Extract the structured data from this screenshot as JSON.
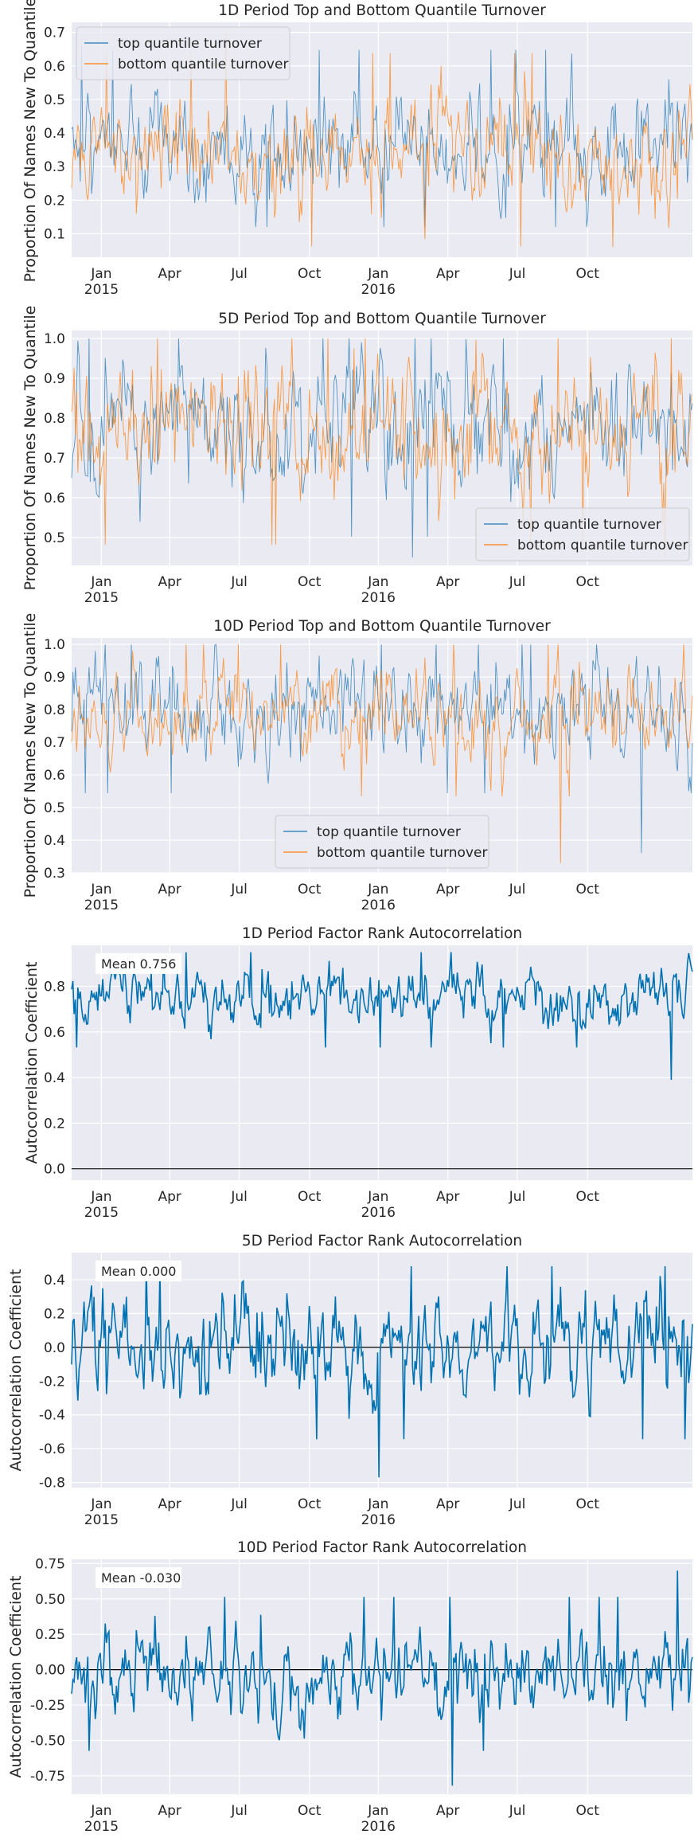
{
  "colors": {
    "background": "#ffffff",
    "plot_face": "#eaeaf2",
    "grid": "#ffffff",
    "text": "#262626",
    "top": "#1f77b4",
    "bottom": "#ff7f0e",
    "autocorr": "#0072b2",
    "zero_line": "#000000"
  },
  "x_ticks": [
    {
      "label": "Jan",
      "year": "2015",
      "t": 0.048
    },
    {
      "label": "Apr",
      "year": "",
      "t": 0.158
    },
    {
      "label": "Jul",
      "year": "",
      "t": 0.27
    },
    {
      "label": "Oct",
      "year": "",
      "t": 0.383
    },
    {
      "label": "Jan",
      "year": "2016",
      "t": 0.494
    },
    {
      "label": "Apr",
      "year": "",
      "t": 0.606
    },
    {
      "label": "Jul",
      "year": "",
      "t": 0.718
    },
    {
      "label": "Oct",
      "year": "",
      "t": 0.831
    }
  ],
  "chart_data": [
    {
      "type": "line",
      "title": "1D Period Top and Bottom Quantile Turnover",
      "ylabel": "Proportion Of Names New To Quantile",
      "ylim": [
        0.03,
        0.73
      ],
      "yticks": [
        "0.1",
        "0.2",
        "0.3",
        "0.4",
        "0.5",
        "0.6",
        "0.7"
      ],
      "legend_position": "upper-left",
      "series": [
        {
          "name": "top quantile turnover",
          "color_key": "top",
          "mean": 0.36,
          "amp": 0.09,
          "min": 0.12,
          "max": 0.66,
          "seed": 11
        },
        {
          "name": "bottom quantile turnover",
          "color_key": "bottom",
          "mean": 0.35,
          "amp": 0.09,
          "min": 0.06,
          "max": 0.7,
          "seed": 23
        }
      ]
    },
    {
      "type": "line",
      "title": "5D Period Top and Bottom Quantile Turnover",
      "ylabel": "Proportion Of Names New To Quantile",
      "ylim": [
        0.43,
        1.02
      ],
      "yticks": [
        "0.5",
        "0.6",
        "0.7",
        "0.8",
        "0.9",
        "1.0"
      ],
      "legend_position": "lower-right",
      "series": [
        {
          "name": "top quantile turnover",
          "color_key": "top",
          "mean": 0.79,
          "amp": 0.09,
          "min": 0.45,
          "max": 1.0,
          "seed": 37
        },
        {
          "name": "bottom quantile turnover",
          "color_key": "bottom",
          "mean": 0.77,
          "amp": 0.09,
          "min": 0.45,
          "max": 1.0,
          "seed": 41
        }
      ]
    },
    {
      "type": "line",
      "title": "10D Period Top and Bottom Quantile Turnover",
      "ylabel": "Proportion Of Names New To Quantile",
      "ylim": [
        0.3,
        1.02
      ],
      "yticks": [
        "0.3",
        "0.4",
        "0.5",
        "0.6",
        "0.7",
        "0.8",
        "0.9",
        "1.0"
      ],
      "legend_position": "lower-center",
      "series": [
        {
          "name": "top quantile turnover",
          "color_key": "top",
          "mean": 0.8,
          "amp": 0.08,
          "min": 0.36,
          "max": 1.0,
          "seed": 53
        },
        {
          "name": "bottom quantile turnover",
          "color_key": "bottom",
          "mean": 0.79,
          "amp": 0.08,
          "min": 0.33,
          "max": 1.0,
          "seed": 67
        }
      ]
    },
    {
      "type": "line",
      "title": "1D Period Factor Rank Autocorrelation",
      "ylabel": "Autocorrelation Coefficient",
      "ylim": [
        -0.05,
        0.98
      ],
      "yticks": [
        "0.0",
        "0.2",
        "0.4",
        "0.6",
        "0.8"
      ],
      "annotation": "Mean 0.756",
      "zero_line": true,
      "series": [
        {
          "name": "autocorrelation",
          "color_key": "autocorr",
          "mean": 0.756,
          "amp": 0.07,
          "min": 0.39,
          "max": 0.95,
          "seed": 71
        }
      ]
    },
    {
      "type": "line",
      "title": "5D Period Factor Rank Autocorrelation",
      "ylabel": "Autocorrelation Coefficient",
      "ylim": [
        -0.83,
        0.56
      ],
      "yticks": [
        "-0.8",
        "-0.6",
        "-0.4",
        "-0.2",
        "0.0",
        "0.2",
        "0.4"
      ],
      "annotation": "Mean 0.000",
      "zero_line": true,
      "series": [
        {
          "name": "autocorrelation",
          "color_key": "autocorr",
          "mean": 0.0,
          "amp": 0.17,
          "min": -0.77,
          "max": 0.48,
          "seed": 83
        }
      ]
    },
    {
      "type": "line",
      "title": "10D Period Factor Rank Autocorrelation",
      "ylabel": "Autocorrelation Coefficient",
      "ylim": [
        -0.88,
        0.78
      ],
      "yticks": [
        "-0.75",
        "-0.50",
        "-0.25",
        "0.00",
        "0.25",
        "0.50",
        "0.75"
      ],
      "annotation": "Mean -0.030",
      "zero_line": true,
      "series": [
        {
          "name": "autocorrelation",
          "color_key": "autocorr",
          "mean": -0.03,
          "amp": 0.17,
          "min": -0.82,
          "max": 0.7,
          "seed": 97
        }
      ]
    }
  ]
}
